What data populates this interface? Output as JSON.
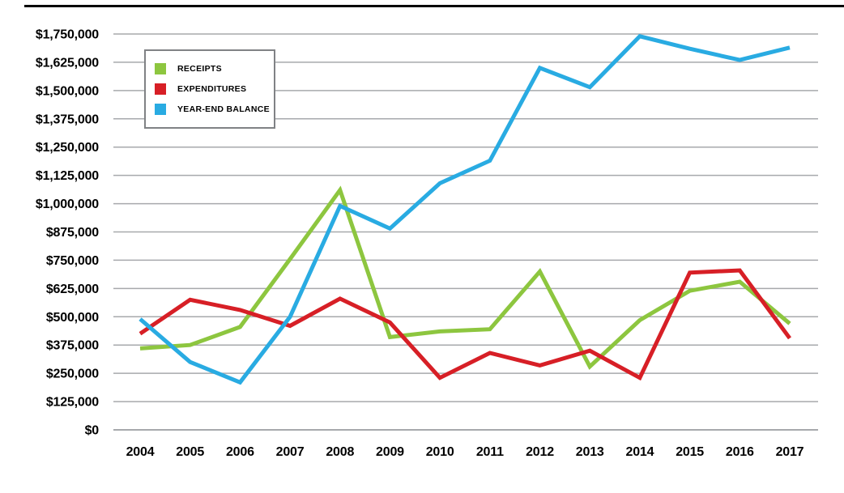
{
  "chart_data": {
    "type": "line",
    "title": "",
    "xlabel": "",
    "ylabel": "",
    "categories": [
      "2004",
      "2005",
      "2006",
      "2007",
      "2008",
      "2009",
      "2010",
      "2011",
      "2012",
      "2013",
      "2014",
      "2015",
      "2016",
      "2017"
    ],
    "y_ticks": [
      "$1,750,000",
      "$1,625,000",
      "$1,500,000",
      "$1,375,000",
      "$1,250,000",
      "$1,125,000",
      "$1,000,000",
      "$875,000",
      "$750,000",
      "$625,000",
      "$500,000",
      "$375,000",
      "$250,000",
      "$125,000",
      "$0"
    ],
    "ylim": [
      0,
      1750000
    ],
    "y_tick_step": 125000,
    "grid": "horizontal-gray-lines",
    "legend_position": "top-left-inside-box",
    "series": [
      {
        "name": "RECEIPTS",
        "color": "#8DC63F",
        "values": [
          360000,
          375000,
          455000,
          755000,
          1060000,
          410000,
          435000,
          445000,
          700000,
          280000,
          485000,
          615000,
          655000,
          470000
        ]
      },
      {
        "name": "EXPENDITURES",
        "color": "#D71F26",
        "values": [
          425000,
          575000,
          530000,
          460000,
          580000,
          475000,
          230000,
          340000,
          285000,
          350000,
          230000,
          695000,
          705000,
          405000
        ]
      },
      {
        "name": "YEAR-END BALANCE",
        "color": "#29ABE2",
        "values": [
          490000,
          300000,
          210000,
          500000,
          990000,
          890000,
          1090000,
          1190000,
          1600000,
          1515000,
          1740000,
          1685000,
          1635000,
          1690000
        ]
      }
    ]
  },
  "colors": {
    "grid_line": "#A7A9AC",
    "axis_text": "#000000",
    "legend_border": "#808285",
    "top_rule": "#000000",
    "background": "#FFFFFF"
  }
}
